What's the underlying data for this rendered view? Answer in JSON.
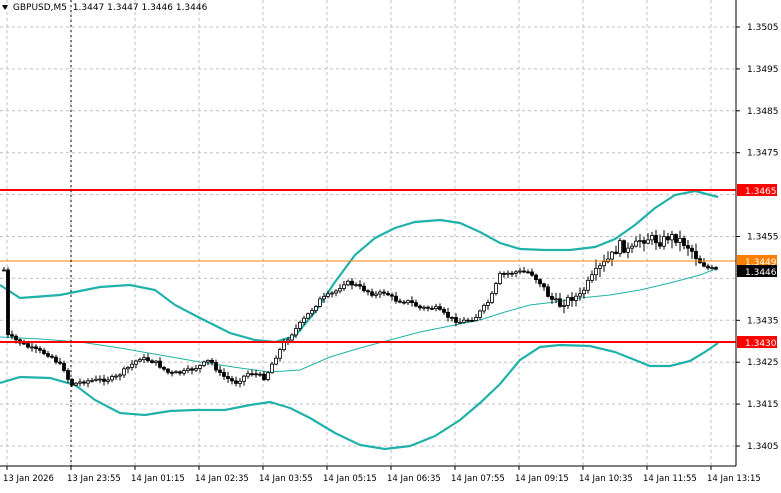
{
  "header": {
    "symbol": "GBPUSD,M5",
    "ohlc": "1.3447 1.3447 1.3446 1.3446"
  },
  "price_axis": {
    "ticks": [
      "1.3505",
      "1.3495",
      "1.3485",
      "1.3475",
      "1.3455",
      "1.3435",
      "1.3425",
      "1.3415",
      "1.3405"
    ],
    "current_price": "1.3446"
  },
  "levels": [
    {
      "label": "1.3465",
      "color": "#ff0000"
    },
    {
      "label": "1.3449",
      "color": "#ff8000"
    },
    {
      "label": "1.3430",
      "color": "#ff0000"
    }
  ],
  "time_axis": {
    "labels": [
      "13 Jan 2026",
      "13 Jan 23:55",
      "14 Jan 01:15",
      "14 Jan 02:35",
      "14 Jan 03:55",
      "14 Jan 05:15",
      "14 Jan 06:35",
      "14 Jan 07:55",
      "14 Jan 09:15",
      "14 Jan 10:35",
      "14 Jan 11:55",
      "14 Jan 13:15"
    ]
  },
  "colors": {
    "bollinger": "#20b2aa",
    "grid": "#c0c0c0",
    "candle": "#000000",
    "background": "#ffffff"
  }
}
